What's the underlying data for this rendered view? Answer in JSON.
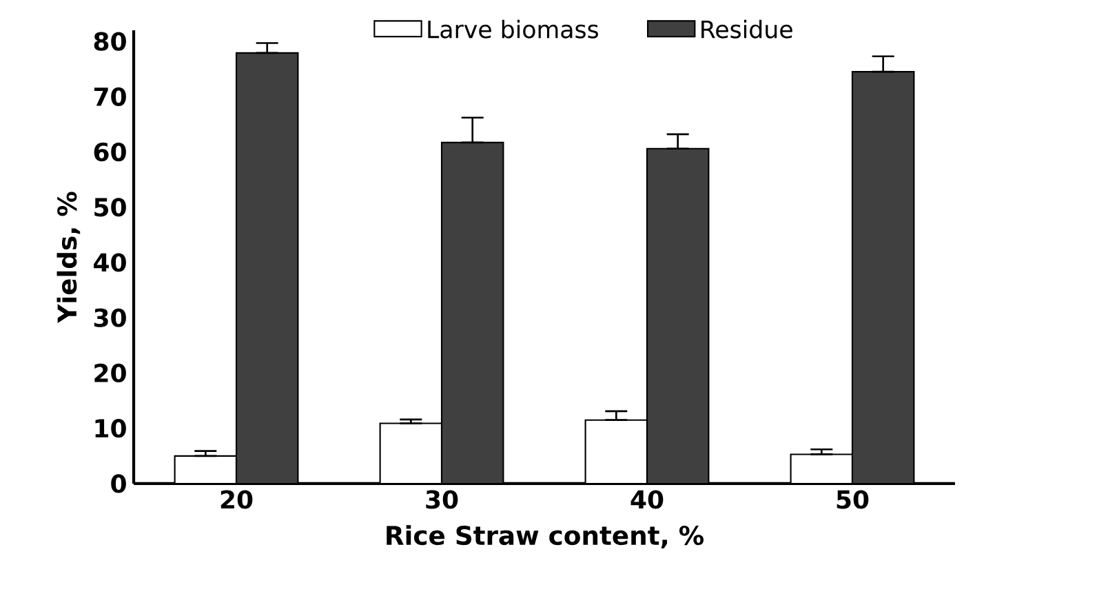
{
  "chart_data": {
    "type": "bar",
    "xlabel": "Rice Straw content, %",
    "ylabel": "Yields, %",
    "categories": [
      "20",
      "30",
      "40",
      "50"
    ],
    "series": [
      {
        "name": "Larve biomass",
        "color": "#ffffff",
        "values": [
          5.0,
          10.9,
          11.5,
          5.3
        ],
        "errors": [
          [
            5.0,
            5.9
          ],
          [
            10.9,
            11.6
          ],
          [
            11.5,
            13.1
          ],
          [
            5.3,
            6.2
          ]
        ]
      },
      {
        "name": "Residue",
        "color": "#404040",
        "values": [
          77.9,
          61.7,
          60.6,
          74.5
        ],
        "errors": [
          [
            77.9,
            79.7
          ],
          [
            61.7,
            66.2
          ],
          [
            60.6,
            63.2
          ],
          [
            74.5,
            77.3
          ]
        ]
      }
    ],
    "ylim": [
      0,
      82
    ],
    "yticks": [
      0,
      10,
      20,
      30,
      40,
      50,
      60,
      70,
      80
    ],
    "legend": "top"
  }
}
